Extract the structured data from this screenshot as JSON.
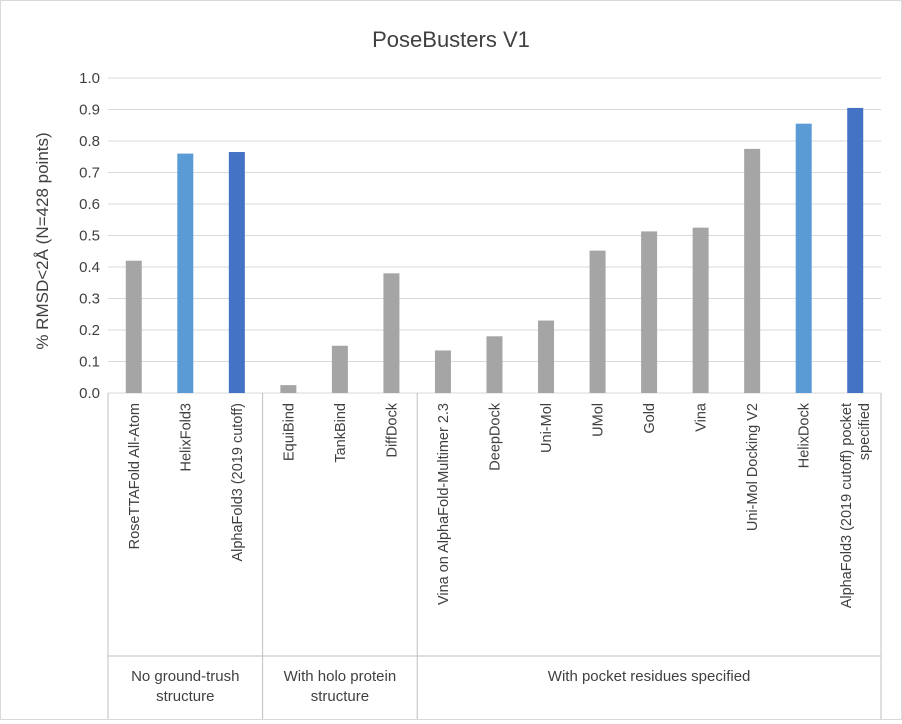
{
  "chart_data": {
    "type": "bar",
    "title": "PoseBusters V1",
    "ylabel": "% RMSD<2Å (N=428 points)",
    "xlabel": "",
    "ylim": [
      0,
      1.0
    ],
    "yticks": [
      "0.0",
      "0.1",
      "0.2",
      "0.3",
      "0.4",
      "0.5",
      "0.6",
      "0.7",
      "0.8",
      "0.9",
      "1.0"
    ],
    "grid": true,
    "categories": [
      "RoseTTAFold All-Atom",
      "HelixFold3",
      "AlphaFold3 (2019 cutoff)",
      "EquiBind",
      "TankBind",
      "DiffDock",
      "Vina on AlphaFold-Multimer 2.3",
      "DeepDock",
      "Uni-Mol",
      "UMol",
      "Gold",
      "Vina",
      "Uni-Mol Docking V2",
      "HelixDock",
      [
        "AlphaFold3 (2019 cutoff) pocket",
        "specified"
      ]
    ],
    "values": [
      0.42,
      0.76,
      0.765,
      0.025,
      0.15,
      0.38,
      0.135,
      0.18,
      0.23,
      0.452,
      0.513,
      0.525,
      0.775,
      0.855,
      0.905
    ],
    "colors": [
      "#a5a5a5",
      "#5b9bd5",
      "#4472c4",
      "#a5a5a5",
      "#a5a5a5",
      "#a5a5a5",
      "#a5a5a5",
      "#a5a5a5",
      "#a5a5a5",
      "#a5a5a5",
      "#a5a5a5",
      "#a5a5a5",
      "#a5a5a5",
      "#5b9bd5",
      "#4472c4"
    ],
    "groups": [
      {
        "label": [
          "No ground-trush",
          "structure"
        ],
        "start": 0,
        "end": 2
      },
      {
        "label": [
          "With holo protein",
          "structure"
        ],
        "start": 3,
        "end": 5
      },
      {
        "label": [
          "With pocket residues specified"
        ],
        "start": 6,
        "end": 14
      }
    ]
  }
}
